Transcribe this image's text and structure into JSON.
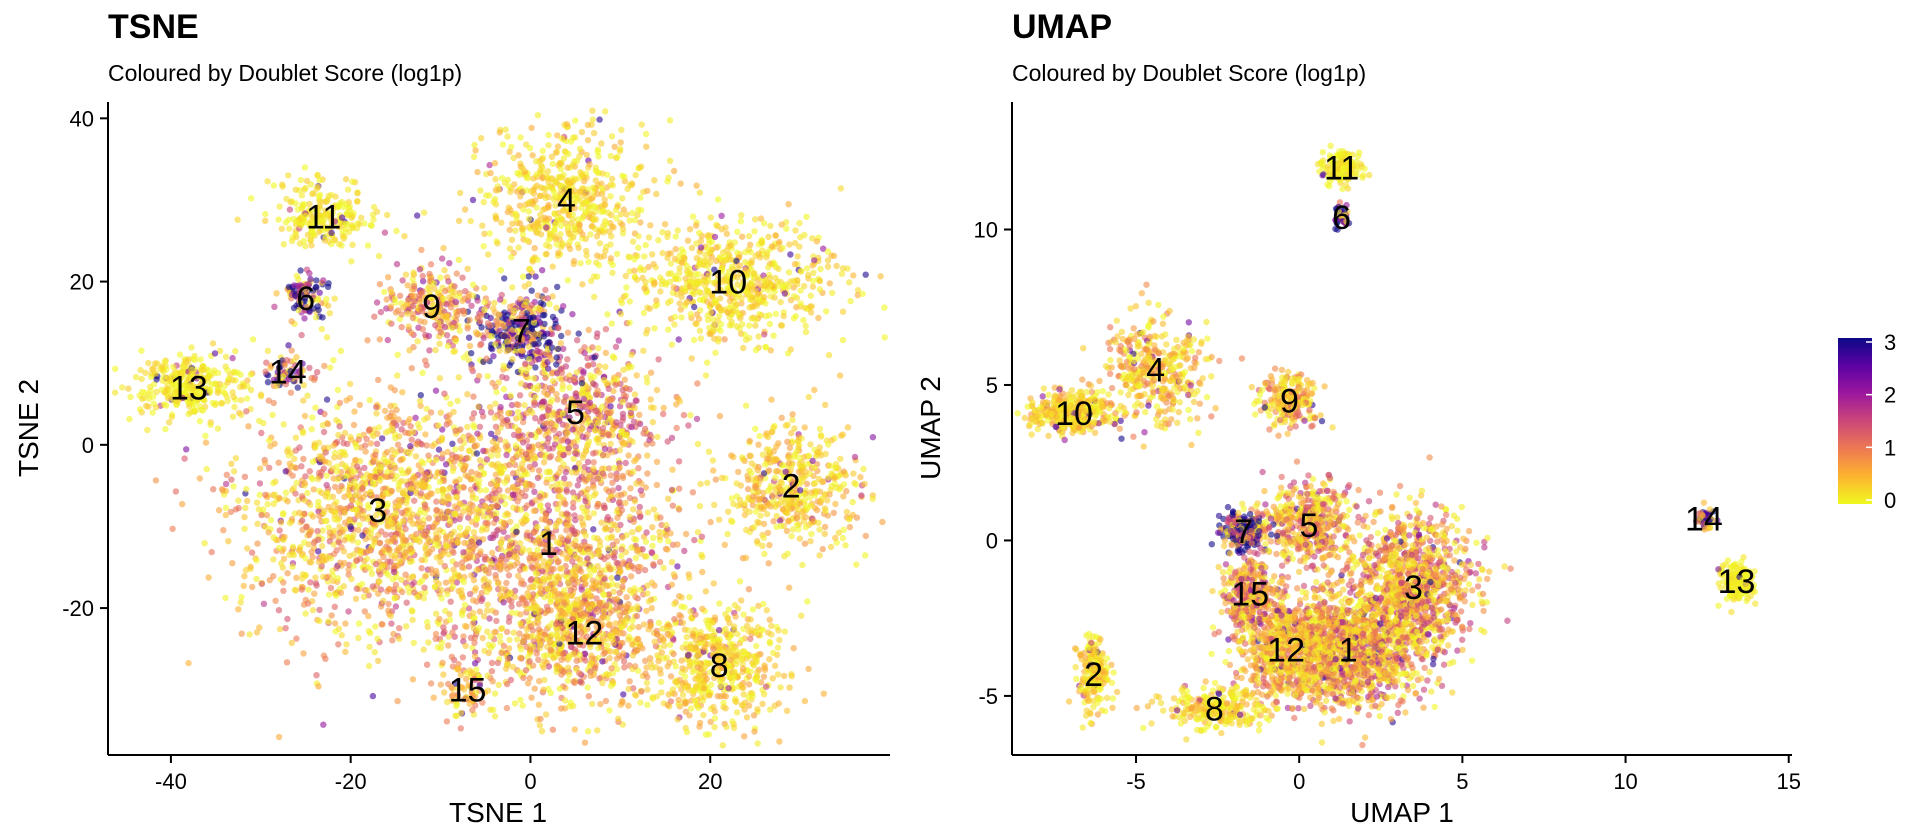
{
  "chart_data": [
    {
      "type": "scatter",
      "title": "TSNE",
      "subtitle": "Coloured by Doublet Score (log1p)",
      "xlabel": "TSNE 1",
      "ylabel": "TSNE 2",
      "xlim": [
        -47,
        40
      ],
      "ylim": [
        -38,
        42
      ],
      "xticks": [
        -40,
        -20,
        0,
        20
      ],
      "yticks": [
        -20,
        0,
        20,
        40
      ],
      "grid": false,
      "clusters": [
        {
          "label": "1",
          "x": 2,
          "y": -12,
          "sx": 9,
          "sy": 10,
          "n": 1300,
          "score": 0.75
        },
        {
          "label": "2",
          "x": 29,
          "y": -5,
          "sx": 4.5,
          "sy": 4.5,
          "n": 450,
          "score": 0.35
        },
        {
          "label": "3",
          "x": -17,
          "y": -8,
          "sx": 9,
          "sy": 9,
          "n": 1400,
          "score": 0.6
        },
        {
          "label": "4",
          "x": 4,
          "y": 30,
          "sx": 5.5,
          "sy": 5,
          "n": 550,
          "score": 0.25
        },
        {
          "label": "5",
          "x": 5,
          "y": 4,
          "sx": 6,
          "sy": 5,
          "n": 500,
          "score": 0.85
        },
        {
          "label": "6",
          "x": -25,
          "y": 18,
          "sx": 1.5,
          "sy": 1.5,
          "n": 110,
          "score": 2.2
        },
        {
          "label": "7",
          "x": -1,
          "y": 14,
          "sx": 3,
          "sy": 3,
          "n": 320,
          "score": 2.5
        },
        {
          "label": "8",
          "x": 21,
          "y": -27,
          "sx": 4,
          "sy": 4.5,
          "n": 480,
          "score": 0.3
        },
        {
          "label": "9",
          "x": -11,
          "y": 17,
          "sx": 3.5,
          "sy": 3,
          "n": 260,
          "score": 0.8
        },
        {
          "label": "10",
          "x": 22,
          "y": 20,
          "sx": 7,
          "sy": 4.5,
          "n": 650,
          "score": 0.25
        },
        {
          "label": "11",
          "x": -23,
          "y": 28,
          "sx": 3.5,
          "sy": 2.5,
          "n": 230,
          "score": 0.15
        },
        {
          "label": "12",
          "x": 6,
          "y": -23,
          "sx": 6,
          "sy": 5,
          "n": 600,
          "score": 0.55
        },
        {
          "label": "13",
          "x": -38,
          "y": 7,
          "sx": 3.5,
          "sy": 2.2,
          "n": 320,
          "score": 0.15
        },
        {
          "label": "14",
          "x": -27,
          "y": 9,
          "sx": 1.5,
          "sy": 1.2,
          "n": 60,
          "score": 2.0
        },
        {
          "label": "15",
          "x": -7,
          "y": -30,
          "sx": 1.5,
          "sy": 2,
          "n": 70,
          "score": 0.5
        }
      ]
    },
    {
      "type": "scatter",
      "title": "UMAP",
      "subtitle": "Coloured by Doublet Score (log1p)",
      "xlabel": "UMAP 1",
      "ylabel": "UMAP 2",
      "xlim": [
        -8.8,
        15.1
      ],
      "ylim": [
        -6.9,
        14.1
      ],
      "xticks": [
        -5,
        0,
        5,
        10,
        15
      ],
      "yticks": [
        -5,
        0,
        5,
        10
      ],
      "grid": false,
      "clusters": [
        {
          "label": "1",
          "x": 1.5,
          "y": -3.5,
          "sx": 1.3,
          "sy": 1.1,
          "n": 1200,
          "score": 0.8
        },
        {
          "label": "2",
          "x": -6.3,
          "y": -4.3,
          "sx": 0.3,
          "sy": 0.7,
          "n": 200,
          "score": 0.3
        },
        {
          "label": "3",
          "x": 3.5,
          "y": -1.5,
          "sx": 1.1,
          "sy": 1.3,
          "n": 1000,
          "score": 0.75
        },
        {
          "label": "4",
          "x": -4.4,
          "y": 5.5,
          "sx": 0.9,
          "sy": 1.0,
          "n": 380,
          "score": 0.45
        },
        {
          "label": "5",
          "x": 0.3,
          "y": 0.5,
          "sx": 0.8,
          "sy": 0.8,
          "n": 450,
          "score": 0.8
        },
        {
          "label": "6",
          "x": 1.3,
          "y": 10.4,
          "sx": 0.15,
          "sy": 0.25,
          "n": 50,
          "score": 2.3
        },
        {
          "label": "7",
          "x": -1.7,
          "y": 0.3,
          "sx": 0.4,
          "sy": 0.4,
          "n": 220,
          "score": 2.3
        },
        {
          "label": "8",
          "x": -2.6,
          "y": -5.4,
          "sx": 0.9,
          "sy": 0.35,
          "n": 250,
          "score": 0.3
        },
        {
          "label": "9",
          "x": -0.3,
          "y": 4.5,
          "sx": 0.5,
          "sy": 0.5,
          "n": 220,
          "score": 0.6
        },
        {
          "label": "10",
          "x": -6.9,
          "y": 4.1,
          "sx": 0.8,
          "sy": 0.4,
          "n": 360,
          "score": 0.35
        },
        {
          "label": "11",
          "x": 1.3,
          "y": 12.0,
          "sx": 0.35,
          "sy": 0.3,
          "n": 150,
          "score": 0.15
        },
        {
          "label": "12",
          "x": -0.4,
          "y": -3.5,
          "sx": 0.9,
          "sy": 1.0,
          "n": 600,
          "score": 0.55
        },
        {
          "label": "13",
          "x": 13.4,
          "y": -1.3,
          "sx": 0.3,
          "sy": 0.35,
          "n": 160,
          "score": 0.1
        },
        {
          "label": "14",
          "x": 12.4,
          "y": 0.7,
          "sx": 0.15,
          "sy": 0.2,
          "n": 45,
          "score": 2.2
        },
        {
          "label": "15",
          "x": -1.5,
          "y": -1.7,
          "sx": 0.5,
          "sy": 0.7,
          "n": 300,
          "score": 0.9
        }
      ]
    }
  ],
  "legend": {
    "placement": "right",
    "min": 0,
    "max": 3,
    "ticks": [
      0,
      1,
      2,
      3
    ],
    "tick_labels": [
      "0",
      "1",
      "2",
      "3"
    ],
    "colors": [
      "#F0F921",
      "#FDB32F",
      "#ED7953",
      "#CC4778",
      "#9C179E",
      "#5B02A3",
      "#0D0887"
    ]
  }
}
